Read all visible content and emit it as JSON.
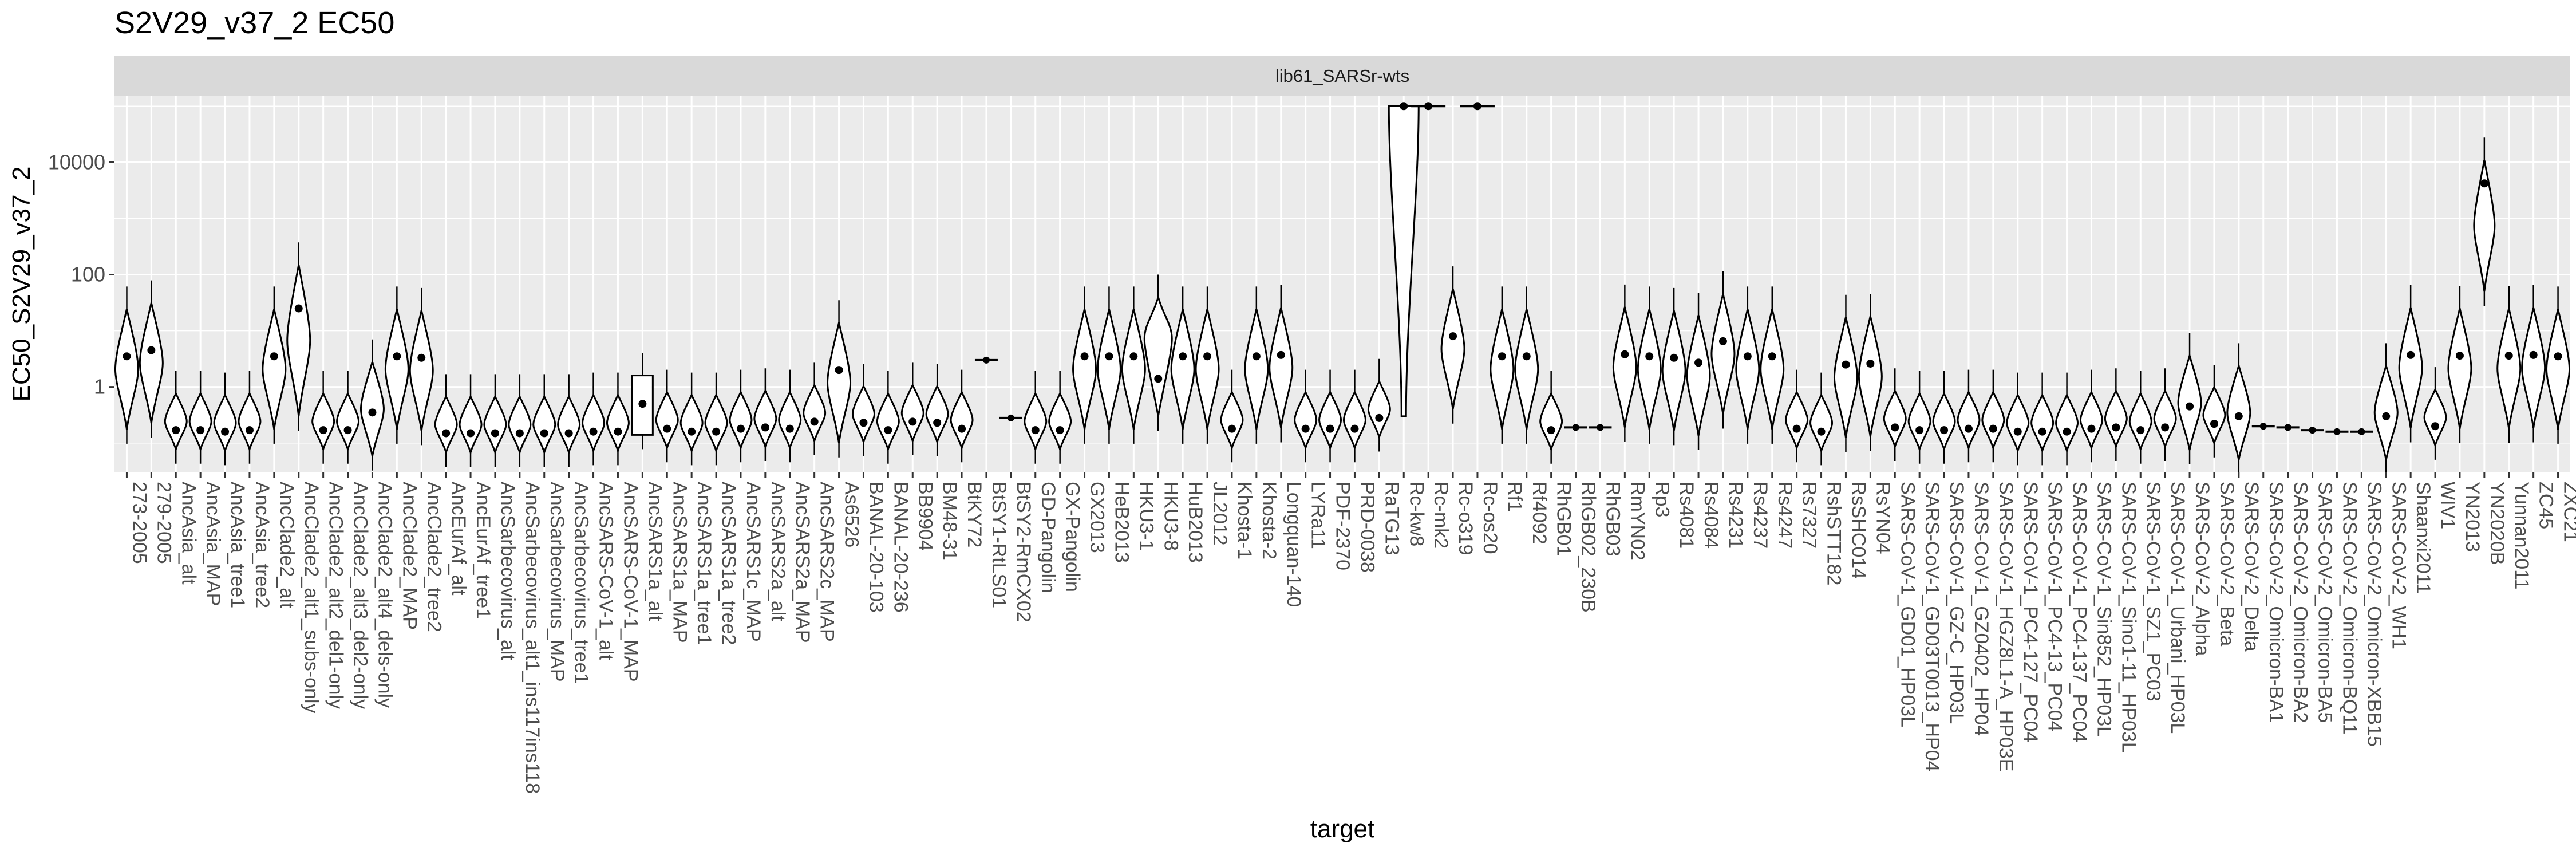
{
  "chart_data": {
    "type": "violin",
    "title": "S2V29_v37_2 EC50",
    "facet_label": "lib61_SARSr-wts",
    "xlabel": "target",
    "ylabel": "EC50_S2V29_v37_2",
    "y_scale": "log10",
    "ylim": [
      0.03,
      150000
    ],
    "y_ticks": [
      1,
      100,
      10000
    ],
    "y_tick_labels": [
      "1",
      "100",
      "10000"
    ],
    "grid": true,
    "legend": "none",
    "colors": {
      "panel_bg": "#ebebeb",
      "grid": "#ffffff",
      "strip_bg": "#d9d9d9",
      "violin_fill": "#ffffff",
      "violin_stroke": "#000000",
      "point": "#000000"
    },
    "categories": [
      "273-2005",
      "279-2005",
      "AncAsia_alt",
      "AncAsia_MAP",
      "AncAsia_tree1",
      "AncAsia_tree2",
      "AncClade2_alt",
      "AncClade2_alt1_subs-only",
      "AncClade2_alt2_del1-only",
      "AncClade2_alt3_del2-only",
      "AncClade2_alt4_dels-only",
      "AncClade2_MAP",
      "AncClade2_tree2",
      "AncEurAf_alt",
      "AncEurAf_tree1",
      "AncSarbecovirus_alt",
      "AncSarbecovirus_alt1_ins117ins118",
      "AncSarbecovirus_MAP",
      "AncSarbecovirus_tree1",
      "AncSARS-CoV-1_alt",
      "AncSARS-CoV-1_MAP",
      "AncSARS1a_alt",
      "AncSARS1a_MAP",
      "AncSARS1a_tree1",
      "AncSARS1a_tree2",
      "AncSARS1c_MAP",
      "AncSARS2a_alt",
      "AncSARS2a_MAP",
      "AncSARS2c_MAP",
      "As6526",
      "BANAL-20-103",
      "BANAL-20-236",
      "BB9904",
      "BM48-31",
      "BtKY72",
      "BtSY1-RtLS01",
      "BtSY2-RmCX02",
      "GD-Pangolin",
      "GX-Pangolin",
      "GX2013",
      "HeB2013",
      "HKU3-1",
      "HKU3-8",
      "HuB2013",
      "JL2012",
      "Khosta-1",
      "Khosta-2",
      "Longquan-140",
      "LYRa11",
      "PDF-2370",
      "PRD-0038",
      "RaTG13",
      "Rc-kw8",
      "Rc-mk2",
      "Rc-o319",
      "Rc-os20",
      "Rf1",
      "Rf4092",
      "RhGB01",
      "RhGB02_230B",
      "RhGB03",
      "RmYN02",
      "Rp3",
      "Rs4081",
      "Rs4084",
      "Rs4231",
      "Rs4237",
      "Rs4247",
      "Rs7327",
      "RshSTT182",
      "RsSHC014",
      "RsYN04",
      "SARS-CoV-1_GD01_HP03L",
      "SARS-CoV-1_GD03T0013_HP04",
      "SARS-CoV-1_GZ-C_HP03L",
      "SARS-CoV-1_GZ0402_HP04",
      "SARS-CoV-1_HGZ8L1-A_HP03E",
      "SARS-CoV-1_PC4-127_PC04",
      "SARS-CoV-1_PC4-13_PC04",
      "SARS-CoV-1_PC4-137_PC04",
      "SARS-CoV-1_Sin852_HP03L",
      "SARS-CoV-1_Sino1-11_HP03L",
      "SARS-CoV-1_SZ1_PC03",
      "SARS-CoV-1_Urbani_HP03L",
      "SARS-CoV-2_Alpha",
      "SARS-CoV-2_Beta",
      "SARS-CoV-2_Delta",
      "SARS-CoV-2_Omicron-BA1",
      "SARS-CoV-2_Omicron-BA2",
      "SARS-CoV-2_Omicron-BA5",
      "SARS-CoV-2_Omicron-BQ11",
      "SARS-CoV-2_Omicron-XBB15",
      "SARS-CoV-2_WH1",
      "Shaanxi2011",
      "WIV1",
      "YN2013",
      "YN2020B",
      "Yunnan2011",
      "ZC45",
      "ZXC21"
    ],
    "series": [
      {
        "medians": [
          3.5,
          4.5,
          0.17,
          0.17,
          0.16,
          0.17,
          3.5,
          25,
          0.17,
          0.17,
          0.35,
          3.5,
          3.3,
          0.15,
          0.15,
          0.15,
          0.15,
          0.15,
          0.15,
          0.16,
          0.16,
          0.5,
          0.18,
          0.16,
          0.16,
          0.18,
          0.19,
          0.18,
          0.24,
          2,
          0.23,
          0.17,
          0.24,
          0.23,
          0.18,
          3,
          0.28,
          0.17,
          0.17,
          3.5,
          3.5,
          3.5,
          1.4,
          3.5,
          3.5,
          0.18,
          3.5,
          3.7,
          0.18,
          0.18,
          0.18,
          0.28,
          100000,
          100000,
          8,
          100000,
          3.5,
          3.5,
          0.17,
          0.19,
          0.19,
          3.8,
          3.5,
          3.3,
          2.7,
          6.5,
          3.5,
          3.5,
          0.18,
          0.16,
          2.5,
          2.6,
          0.19,
          0.17,
          0.17,
          0.18,
          0.18,
          0.16,
          0.16,
          0.16,
          0.18,
          0.19,
          0.17,
          0.19,
          0.45,
          0.22,
          0.3,
          0.2,
          0.19,
          0.17,
          0.16,
          0.16,
          0.3,
          3.7,
          0.2,
          3.6,
          4200,
          3.6,
          3.7,
          3.5
        ]
      }
    ]
  }
}
